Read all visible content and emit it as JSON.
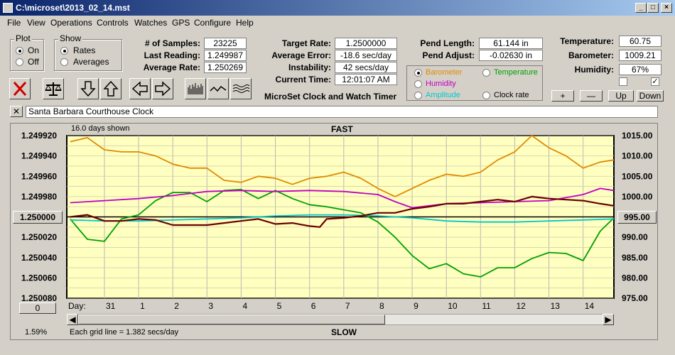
{
  "window": {
    "title": "C:\\microset\\2013_02_14.mst"
  },
  "menu": [
    "File",
    "View",
    "Operations",
    "Controls",
    "Watches",
    "GPS",
    "Configure",
    "Help"
  ],
  "plot_group": {
    "label": "Plot",
    "on": "On",
    "off": "Off",
    "selected": "On"
  },
  "show_group": {
    "label": "Show",
    "rates": "Rates",
    "averages": "Averages",
    "selected": "Rates"
  },
  "stats": {
    "samples_label": "# of Samples:",
    "samples": "23225",
    "last_label": "Last Reading:",
    "last": "1.249987",
    "avg_label": "Average Rate:",
    "avg": "1.250269",
    "target_label": "Target Rate:",
    "target": "1.2500000",
    "avgerr_label": "Average Error:",
    "avgerr": "-18.6 sec/day",
    "instab_label": "Instability:",
    "instab": "42 secs/day",
    "time_label": "Current Time:",
    "time": "12:01:07 AM",
    "pendlen_label": "Pend Length:",
    "pendlen": "61.144 in",
    "pendadj_label": "Pend Adjust:",
    "pendadj": "-0.02630 in",
    "temp_label": "Temperature:",
    "temp": "60.75",
    "baro_label": "Barometer:",
    "baro": "1009.21",
    "hum_label": "Humidity:",
    "hum": "67%"
  },
  "app_caption": "MicroSet Clock and Watch Timer",
  "sensor_options": [
    {
      "label": "Barometer",
      "color": "#e08a00",
      "selected": true
    },
    {
      "label": "Temperature",
      "color": "#00a000",
      "selected": false
    },
    {
      "label": "Humidity",
      "color": "#c000c0",
      "selected": false
    },
    {
      "label": "Amplitude",
      "color": "#00c8c8",
      "selected": false
    },
    {
      "label": "Clock rate",
      "color": "#000000",
      "selected": false
    }
  ],
  "scale_buttons": [
    "+",
    "—",
    "Up",
    "Down"
  ],
  "checkboxes": [
    false,
    true
  ],
  "toolbar_icons": [
    "close-x-icon",
    "balance-scale-icon",
    "arrow-down-icon",
    "arrow-up-icon",
    "arrow-left-icon",
    "arrow-right-icon",
    "bar-chart-icon",
    "line-wave-icon",
    "multi-wave-icon"
  ],
  "clock_name": "Santa Barbara Courthouse Clock",
  "plot": {
    "days_shown": "16.0 days shown",
    "top_label": "FAST",
    "bottom_label": "SLOW",
    "grid_note": "Each grid line = 1.382 secs/day",
    "percent": "1.59%",
    "day_label": "Day:",
    "left_axis_button": "1.250000",
    "right_axis_button": "995.00",
    "zero_button": "0",
    "left_ticks": [
      "1.249920",
      "1.249940",
      "1.249960",
      "1.249980",
      "1.250000",
      "1.250020",
      "1.250040",
      "1.250060",
      "1.250080"
    ],
    "right_ticks": [
      "1015.00",
      "1010.00",
      "1005.00",
      "1000.00",
      "995.00",
      "990.00",
      "985.00",
      "980.00",
      "975.00"
    ],
    "day_ticks": [
      "31",
      "1",
      "2",
      "3",
      "4",
      "5",
      "6",
      "7",
      "8",
      "9",
      "10",
      "11",
      "12",
      "13",
      "14"
    ]
  },
  "chart_data": {
    "type": "line",
    "x_label": "Day:",
    "y_left_range": [
      1.24992,
      1.25008
    ],
    "y_right_range": [
      975,
      1015
    ],
    "series": [
      {
        "name": "Barometer",
        "color": "#e08a00",
        "axis": "right",
        "x": [
          30.0,
          30.5,
          31.0,
          31.5,
          1.0,
          1.5,
          2.0,
          2.5,
          3.0,
          3.5,
          4.0,
          4.5,
          5.0,
          5.5,
          6.0,
          6.5,
          7.0,
          7.5,
          8.0,
          8.5,
          9.0,
          9.5,
          10.0,
          10.5,
          11.0,
          11.5,
          12.0,
          12.5,
          13.0,
          13.5,
          14.0,
          14.5,
          14.9
        ],
        "values": [
          1013.5,
          1014.5,
          1011.5,
          1011.0,
          1011.0,
          1010.0,
          1008.0,
          1007.0,
          1007.0,
          1004.0,
          1003.5,
          1005.0,
          1004.5,
          1003.0,
          1004.5,
          1005.0,
          1006.0,
          1004.5,
          1002.0,
          1000.0,
          1002.0,
          1004.0,
          1005.5,
          1005.0,
          1006.0,
          1009.0,
          1011.0,
          1015.0,
          1012.0,
          1010.0,
          1007.0,
          1008.5,
          1009.0
        ]
      },
      {
        "name": "Temperature",
        "color": "#00a000",
        "axis": "left",
        "x": [
          30.0,
          30.5,
          31.0,
          31.5,
          1.0,
          1.5,
          2.0,
          2.5,
          3.0,
          3.5,
          4.0,
          4.5,
          5.0,
          5.5,
          6.0,
          6.5,
          7.0,
          7.5,
          8.0,
          8.5,
          9.0,
          9.5,
          10.0,
          10.5,
          11.0,
          11.5,
          12.0,
          12.5,
          13.0,
          13.5,
          14.0,
          14.5,
          14.9
        ],
        "values": [
          1.250002,
          1.250022,
          1.250024,
          1.250002,
          1.249998,
          1.249984,
          1.249976,
          1.249976,
          1.249985,
          1.249974,
          1.249973,
          1.249982,
          1.249974,
          1.249982,
          1.249988,
          1.24999,
          1.249993,
          1.249996,
          1.250005,
          1.25002,
          1.250038,
          1.250051,
          1.250046,
          1.250056,
          1.250059,
          1.25005,
          1.25005,
          1.250041,
          1.250035,
          1.250036,
          1.250043,
          1.250014,
          1.250001
        ]
      },
      {
        "name": "Humidity",
        "color": "#c000c0",
        "axis": "left",
        "x": [
          30.0,
          31.0,
          1.0,
          2.0,
          3.0,
          4.0,
          5.0,
          6.0,
          7.0,
          8.0,
          8.5,
          9.0,
          10.0,
          11.0,
          12.0,
          13.0,
          14.0,
          14.5,
          14.9
        ],
        "values": [
          1.249986,
          1.249984,
          1.249982,
          1.249979,
          1.249975,
          1.249974,
          1.249975,
          1.249974,
          1.249975,
          1.249978,
          1.249985,
          1.249991,
          1.249987,
          1.249986,
          1.249985,
          1.249984,
          1.249978,
          1.249972,
          1.249974
        ]
      },
      {
        "name": "Amplitude",
        "color": "#00c8c8",
        "axis": "left",
        "x": [
          30.0,
          31.0,
          1.0,
          2.0,
          3.0,
          4.0,
          5.0,
          6.0,
          7.0,
          8.0,
          9.0,
          10.0,
          11.0,
          12.0,
          13.0,
          14.0,
          14.9
        ],
        "values": [
          1.250003,
          1.250004,
          1.250004,
          1.250003,
          1.250002,
          1.250001,
          1.249999,
          1.249998,
          1.249998,
          1.249999,
          1.250001,
          1.250004,
          1.250005,
          1.250005,
          1.250004,
          1.250003,
          1.250002
        ]
      },
      {
        "name": "Clock rate",
        "color": "#6b0000",
        "axis": "left",
        "x": [
          30.0,
          30.5,
          31.0,
          31.5,
          1.0,
          1.5,
          2.0,
          2.5,
          3.0,
          3.5,
          4.0,
          4.5,
          5.0,
          5.5,
          6.0,
          6.3,
          6.5,
          7.0,
          7.5,
          8.0,
          8.5,
          9.0,
          9.5,
          10.0,
          10.5,
          11.0,
          11.5,
          12.0,
          12.5,
          13.0,
          13.5,
          14.0,
          14.5,
          14.9
        ],
        "values": [
          1.25,
          1.249998,
          1.250004,
          1.250004,
          1.250002,
          1.250003,
          1.250008,
          1.250008,
          1.250008,
          1.250006,
          1.250004,
          1.250002,
          1.250007,
          1.250006,
          1.250009,
          1.25001,
          1.250002,
          1.250001,
          1.249999,
          1.249996,
          1.249996,
          1.249992,
          1.24999,
          1.249987,
          1.249987,
          1.249985,
          1.249983,
          1.249985,
          1.24998,
          1.249982,
          1.249983,
          1.249984,
          1.249987,
          1.249989
        ]
      }
    ]
  }
}
